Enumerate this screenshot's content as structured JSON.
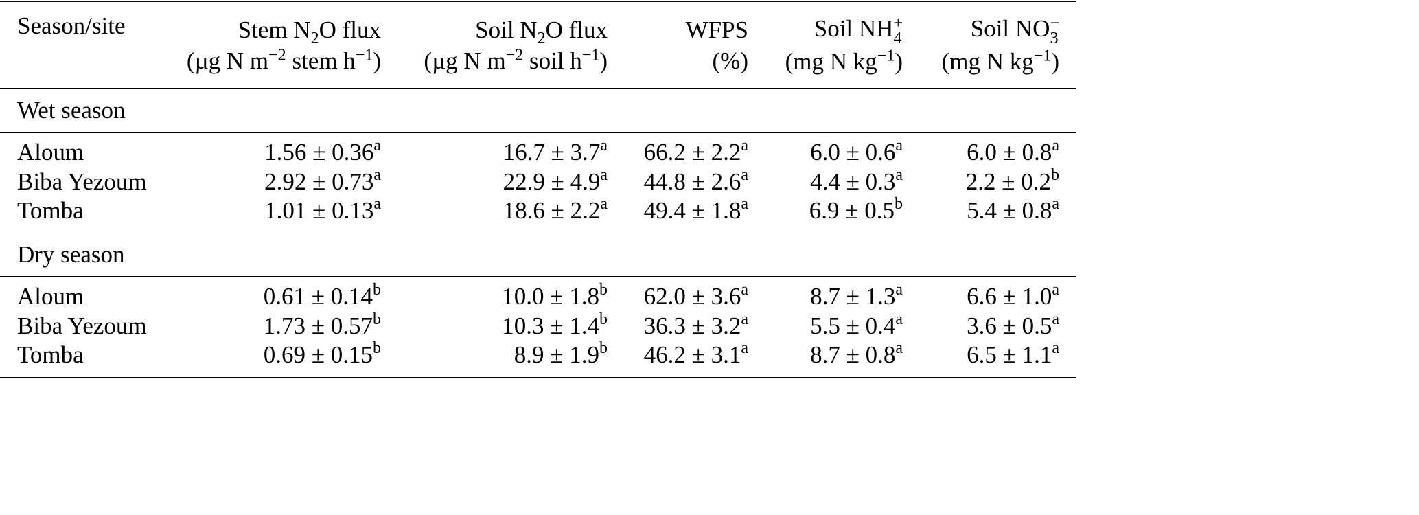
{
  "table": {
    "header": [
      {
        "line1": [
          "Season/site"
        ]
      },
      {
        "line1": [
          "Stem N",
          "2",
          "O flux"
        ],
        "line2": [
          "(µg N m",
          "−2",
          " stem h",
          "−1",
          ")"
        ]
      },
      {
        "line1": [
          "Soil N",
          "2",
          "O flux"
        ],
        "line2": [
          "(µg N m",
          "−2",
          " soil h",
          "−1",
          ")"
        ]
      },
      {
        "line1": [
          "WFPS"
        ],
        "line2": [
          "(%)"
        ]
      },
      {
        "line1": [
          "Soil NH",
          "+",
          "4"
        ],
        "line2": [
          "(mg N kg",
          "−1",
          ")"
        ]
      },
      {
        "line1": [
          "Soil NO",
          "−",
          "3"
        ],
        "line2": [
          "(mg N kg",
          "−1",
          ")"
        ]
      }
    ],
    "sections": [
      {
        "label": "Wet season",
        "rows": [
          {
            "site": "Aloum",
            "cells": [
              {
                "value": "1.56 ± 0.36",
                "letter": "a"
              },
              {
                "value": "16.7 ± 3.7",
                "letter": "a"
              },
              {
                "value": "66.2 ± 2.2",
                "letter": "a"
              },
              {
                "value": "6.0 ± 0.6",
                "letter": "a"
              },
              {
                "value": "6.0 ± 0.8",
                "letter": "a"
              }
            ]
          },
          {
            "site": "Biba Yezoum",
            "cells": [
              {
                "value": "2.92 ± 0.73",
                "letter": "a"
              },
              {
                "value": "22.9 ± 4.9",
                "letter": "a"
              },
              {
                "value": "44.8 ± 2.6",
                "letter": "a"
              },
              {
                "value": "4.4 ± 0.3",
                "letter": "a"
              },
              {
                "value": "2.2 ± 0.2",
                "letter": "b"
              }
            ]
          },
          {
            "site": "Tomba",
            "cells": [
              {
                "value": "1.01 ± 0.13",
                "letter": "a"
              },
              {
                "value": "18.6 ± 2.2",
                "letter": "a"
              },
              {
                "value": "49.4 ± 1.8",
                "letter": "a"
              },
              {
                "value": "6.9 ± 0.5",
                "letter": "b"
              },
              {
                "value": "5.4 ± 0.8",
                "letter": "a"
              }
            ]
          }
        ]
      },
      {
        "label": "Dry season",
        "rows": [
          {
            "site": "Aloum",
            "cells": [
              {
                "value": "0.61 ± 0.14",
                "letter": "b"
              },
              {
                "value": "10.0 ± 1.8",
                "letter": "b"
              },
              {
                "value": "62.0 ± 3.6",
                "letter": "a"
              },
              {
                "value": "8.7 ± 1.3",
                "letter": "a"
              },
              {
                "value": "6.6 ± 1.0",
                "letter": "a"
              }
            ]
          },
          {
            "site": "Biba Yezoum",
            "cells": [
              {
                "value": "1.73 ± 0.57",
                "letter": "b"
              },
              {
                "value": "10.3 ± 1.4",
                "letter": "b"
              },
              {
                "value": "36.3 ± 3.2",
                "letter": "a"
              },
              {
                "value": "5.5 ± 0.4",
                "letter": "a"
              },
              {
                "value": "3.6 ± 0.5",
                "letter": "a"
              }
            ]
          },
          {
            "site": "Tomba",
            "cells": [
              {
                "value": "0.69 ± 0.15",
                "letter": "b"
              },
              {
                "value": "8.9 ± 1.9",
                "letter": "b"
              },
              {
                "value": "46.2 ± 3.1",
                "letter": "a"
              },
              {
                "value": "8.7 ± 0.8",
                "letter": "a"
              },
              {
                "value": "6.5 ± 1.1",
                "letter": "a"
              }
            ]
          }
        ]
      }
    ]
  }
}
